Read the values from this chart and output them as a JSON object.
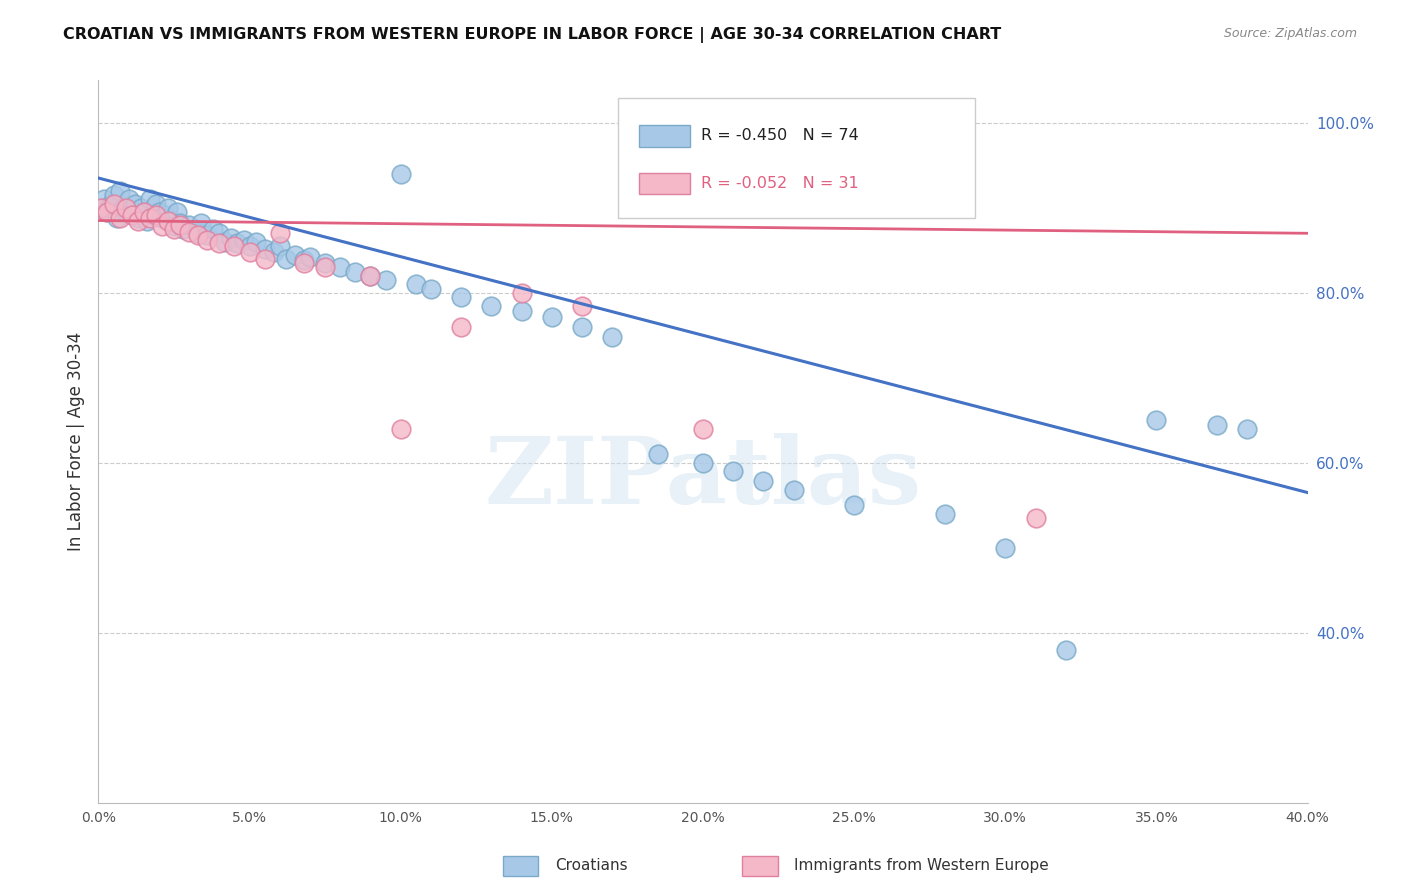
{
  "title": "CROATIAN VS IMMIGRANTS FROM WESTERN EUROPE IN LABOR FORCE | AGE 30-34 CORRELATION CHART",
  "source": "Source: ZipAtlas.com",
  "ylabel": "In Labor Force | Age 30-34",
  "xlim": [
    0.0,
    0.4
  ],
  "ylim": [
    0.2,
    1.05
  ],
  "xtick_vals": [
    0.0,
    0.05,
    0.1,
    0.15,
    0.2,
    0.25,
    0.3,
    0.35,
    0.4
  ],
  "xtick_labels": [
    "0.0%",
    "5.0%",
    "10.0%",
    "15.0%",
    "20.0%",
    "25.0%",
    "30.0%",
    "35.0%",
    "40.0%"
  ],
  "ytick_vals": [
    0.4,
    0.6,
    0.8,
    1.0
  ],
  "ytick_labels": [
    "40.0%",
    "60.0%",
    "80.0%",
    "100.0%"
  ],
  "blue_R": -0.45,
  "blue_N": 74,
  "pink_R": -0.052,
  "pink_N": 31,
  "blue_color": "#a8c8e8",
  "blue_edge": "#7aaac8",
  "pink_color": "#f4b8c8",
  "pink_edge": "#e080a0",
  "blue_line_color": "#4472c4",
  "pink_line_color": "#e06080",
  "watermark_text": "ZIPatlas",
  "blue_line_y0": 0.935,
  "blue_line_y1": 0.565,
  "pink_line_y0": 0.885,
  "pink_line_y1": 0.87,
  "blue_x": [
    0.001,
    0.002,
    0.003,
    0.004,
    0.005,
    0.006,
    0.007,
    0.008,
    0.009,
    0.01,
    0.011,
    0.012,
    0.013,
    0.014,
    0.015,
    0.016,
    0.017,
    0.018,
    0.019,
    0.02,
    0.021,
    0.022,
    0.023,
    0.024,
    0.025,
    0.026,
    0.027,
    0.028,
    0.03,
    0.032,
    0.033,
    0.034,
    0.036,
    0.038,
    0.04,
    0.042,
    0.044,
    0.046,
    0.048,
    0.05,
    0.052,
    0.055,
    0.058,
    0.06,
    0.062,
    0.065,
    0.068,
    0.07,
    0.075,
    0.08,
    0.085,
    0.09,
    0.095,
    0.1,
    0.105,
    0.11,
    0.12,
    0.13,
    0.14,
    0.15,
    0.16,
    0.17,
    0.185,
    0.2,
    0.21,
    0.22,
    0.23,
    0.25,
    0.28,
    0.3,
    0.32,
    0.35,
    0.37,
    0.38
  ],
  "blue_y": [
    0.9,
    0.91,
    0.895,
    0.905,
    0.915,
    0.888,
    0.92,
    0.9,
    0.895,
    0.91,
    0.892,
    0.905,
    0.888,
    0.9,
    0.895,
    0.885,
    0.91,
    0.892,
    0.905,
    0.895,
    0.888,
    0.892,
    0.9,
    0.885,
    0.878,
    0.895,
    0.882,
    0.875,
    0.88,
    0.875,
    0.87,
    0.882,
    0.868,
    0.875,
    0.87,
    0.86,
    0.865,
    0.858,
    0.862,
    0.855,
    0.86,
    0.852,
    0.848,
    0.855,
    0.84,
    0.845,
    0.838,
    0.842,
    0.835,
    0.83,
    0.825,
    0.82,
    0.815,
    0.94,
    0.81,
    0.805,
    0.795,
    0.785,
    0.778,
    0.772,
    0.76,
    0.748,
    0.61,
    0.6,
    0.59,
    0.578,
    0.568,
    0.55,
    0.54,
    0.5,
    0.38,
    0.65,
    0.645,
    0.64
  ],
  "pink_x": [
    0.001,
    0.003,
    0.005,
    0.007,
    0.009,
    0.011,
    0.013,
    0.015,
    0.017,
    0.019,
    0.021,
    0.023,
    0.025,
    0.027,
    0.03,
    0.033,
    0.036,
    0.04,
    0.045,
    0.05,
    0.055,
    0.06,
    0.068,
    0.075,
    0.09,
    0.1,
    0.12,
    0.14,
    0.16,
    0.2,
    0.31
  ],
  "pink_y": [
    0.9,
    0.895,
    0.905,
    0.888,
    0.9,
    0.892,
    0.885,
    0.895,
    0.888,
    0.892,
    0.878,
    0.885,
    0.875,
    0.88,
    0.872,
    0.868,
    0.862,
    0.858,
    0.855,
    0.848,
    0.84,
    0.87,
    0.835,
    0.83,
    0.82,
    0.64,
    0.76,
    0.8,
    0.785,
    0.64,
    0.535
  ]
}
